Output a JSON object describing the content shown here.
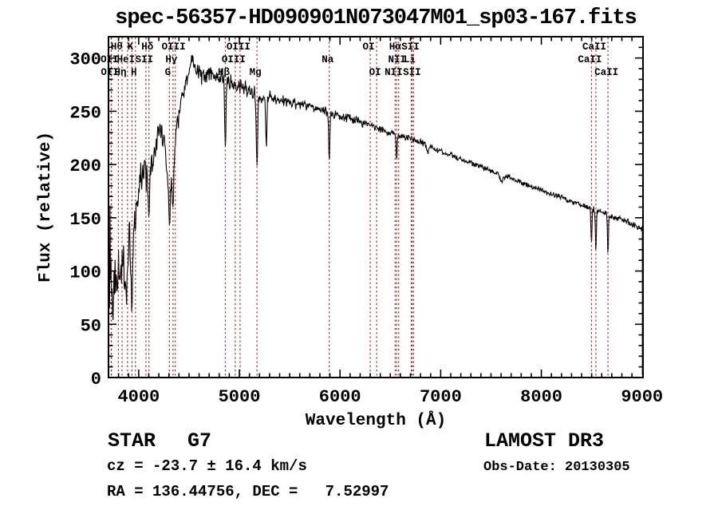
{
  "title": "spec-56357-HD090901N073047M01_sp03-167.fits",
  "footer": {
    "class_label": "STAR",
    "subclass_label": "G7",
    "release_label": "LAMOST DR3",
    "cz_line": "cz = -23.7 ± 16.4 km/s",
    "obsdate_line": "Obs-Date: 20130305",
    "radec_line": "RA = 136.44756, DEC =   7.52997"
  },
  "chart_data": {
    "type": "line",
    "title": "spec-56357-HD090901N073047M01_sp03-167.fits",
    "xlabel": "Wavelength (Å)",
    "ylabel": "Flux (relative)",
    "xlim": [
      3700,
      9010
    ],
    "ylim": [
      0,
      320
    ],
    "x_ticks": [
      4000,
      5000,
      6000,
      7000,
      8000,
      9000
    ],
    "x_minor_step": 100,
    "y_ticks": [
      0,
      50,
      100,
      150,
      200,
      250,
      300
    ],
    "y_minor_step": 10,
    "grid": false,
    "legend": "none",
    "series_name": "flux",
    "series_color": "#000000",
    "marker_color": "#992828",
    "noise_seed": 20130305,
    "sample_step": 5,
    "spectral_lines": [
      {
        "label": "OII",
        "wavelength": 3727,
        "row": 1
      },
      {
        "label": "OII",
        "wavelength": 3729,
        "row": 2
      },
      {
        "label": "Hθ",
        "wavelength": 3798,
        "row": 0
      },
      {
        "label": "Hη",
        "wavelength": 3835,
        "row": 2
      },
      {
        "label": "HeI",
        "wavelength": 3889,
        "row": 1
      },
      {
        "label": "K",
        "wavelength": 3933,
        "row": 0
      },
      {
        "label": "H",
        "wavelength": 3968,
        "row": 2
      },
      {
        "label": "SII",
        "wavelength": 4072,
        "row": 1
      },
      {
        "label": "Hδ",
        "wavelength": 4102,
        "row": 0
      },
      {
        "label": "G",
        "wavelength": 4305,
        "row": 2
      },
      {
        "label": "Hγ",
        "wavelength": 4341,
        "row": 1
      },
      {
        "label": "OIII",
        "wavelength": 4363,
        "row": 0
      },
      {
        "label": "Hβ",
        "wavelength": 4861,
        "row": 2
      },
      {
        "label": "OIII",
        "wavelength": 4959,
        "row": 1
      },
      {
        "label": "OIII",
        "wavelength": 5007,
        "row": 0
      },
      {
        "label": "Mg",
        "wavelength": 5175,
        "row": 2
      },
      {
        "label": "Na",
        "wavelength": 5893,
        "row": 1
      },
      {
        "label": "OI",
        "wavelength": 6300,
        "row": 0
      },
      {
        "label": "OI",
        "wavelength": 6364,
        "row": 2
      },
      {
        "label": "NII",
        "wavelength": 6548,
        "row": 2
      },
      {
        "label": "Hα",
        "wavelength": 6563,
        "row": 0
      },
      {
        "label": "NII",
        "wavelength": 6583,
        "row": 1
      },
      {
        "label": "Li",
        "wavelength": 6708,
        "row": 1
      },
      {
        "label": "SII",
        "wavelength": 6716,
        "row": 0
      },
      {
        "label": "SII",
        "wavelength": 6731,
        "row": 2
      },
      {
        "label": "CaII",
        "wavelength": 8498,
        "row": 1
      },
      {
        "label": "CaII",
        "wavelength": 8542,
        "row": 0
      },
      {
        "label": "CaII",
        "wavelength": 8662,
        "row": 2
      }
    ],
    "continuum_points": [
      [
        3700,
        165
      ],
      [
        3702,
        35
      ],
      [
        3706,
        120
      ],
      [
        3710,
        70
      ],
      [
        3714,
        150
      ],
      [
        3720,
        95
      ],
      [
        3728,
        105
      ],
      [
        3736,
        75
      ],
      [
        3745,
        68
      ],
      [
        3755,
        82
      ],
      [
        3765,
        95
      ],
      [
        3775,
        72
      ],
      [
        3788,
        88
      ],
      [
        3800,
        98
      ],
      [
        3812,
        86
      ],
      [
        3825,
        102
      ],
      [
        3838,
        98
      ],
      [
        3852,
        108
      ],
      [
        3863,
        85
      ],
      [
        3872,
        60
      ],
      [
        3882,
        95
      ],
      [
        3892,
        118
      ],
      [
        3905,
        130
      ],
      [
        3918,
        112
      ],
      [
        3928,
        100
      ],
      [
        3933,
        85
      ],
      [
        3940,
        110
      ],
      [
        3950,
        128
      ],
      [
        3962,
        142
      ],
      [
        3975,
        158
      ],
      [
        3990,
        168
      ],
      [
        4000,
        176
      ],
      [
        4020,
        184
      ],
      [
        4040,
        192
      ],
      [
        4060,
        196
      ],
      [
        4080,
        188
      ],
      [
        4100,
        185
      ],
      [
        4120,
        192
      ],
      [
        4140,
        205
      ],
      [
        4160,
        215
      ],
      [
        4180,
        226
      ],
      [
        4200,
        238
      ],
      [
        4220,
        232
      ],
      [
        4240,
        224
      ],
      [
        4260,
        218
      ],
      [
        4280,
        208
      ],
      [
        4300,
        198
      ],
      [
        4320,
        196
      ],
      [
        4340,
        205
      ],
      [
        4360,
        215
      ],
      [
        4380,
        235
      ],
      [
        4400,
        252
      ],
      [
        4420,
        258
      ],
      [
        4440,
        266
      ],
      [
        4460,
        274
      ],
      [
        4480,
        282
      ],
      [
        4500,
        289
      ],
      [
        4520,
        294
      ],
      [
        4540,
        292
      ],
      [
        4560,
        290
      ],
      [
        4580,
        288
      ],
      [
        4600,
        287
      ],
      [
        4630,
        284
      ],
      [
        4660,
        283
      ],
      [
        4700,
        286
      ],
      [
        4740,
        282
      ],
      [
        4780,
        281
      ],
      [
        4820,
        283
      ],
      [
        4861,
        281
      ],
      [
        4900,
        279
      ],
      [
        4930,
        276
      ],
      [
        4959,
        276
      ],
      [
        5007,
        272
      ],
      [
        5060,
        272
      ],
      [
        5120,
        268
      ],
      [
        5175,
        263
      ],
      [
        5240,
        261
      ],
      [
        5300,
        263
      ],
      [
        5350,
        262
      ],
      [
        5400,
        261
      ],
      [
        5450,
        260
      ],
      [
        5500,
        259
      ],
      [
        5550,
        258
      ],
      [
        5600,
        257
      ],
      [
        5650,
        256
      ],
      [
        5700,
        255
      ],
      [
        5750,
        253
      ],
      [
        5800,
        252
      ],
      [
        5850,
        250
      ],
      [
        5893,
        249
      ],
      [
        5950,
        247
      ],
      [
        6000,
        246
      ],
      [
        6100,
        243
      ],
      [
        6200,
        240
      ],
      [
        6300,
        237
      ],
      [
        6400,
        233
      ],
      [
        6500,
        230
      ],
      [
        6600,
        227
      ],
      [
        6700,
        225
      ],
      [
        6800,
        221
      ],
      [
        6900,
        217
      ],
      [
        7000,
        213
      ],
      [
        7100,
        209
      ],
      [
        7200,
        205
      ],
      [
        7300,
        201
      ],
      [
        7400,
        198
      ],
      [
        7500,
        194
      ],
      [
        7600,
        190
      ],
      [
        7700,
        187
      ],
      [
        7800,
        183
      ],
      [
        7900,
        179
      ],
      [
        8000,
        176
      ],
      [
        8100,
        172
      ],
      [
        8200,
        169
      ],
      [
        8300,
        165
      ],
      [
        8400,
        162
      ],
      [
        8500,
        158
      ],
      [
        8600,
        155
      ],
      [
        8700,
        151
      ],
      [
        8800,
        148
      ],
      [
        8900,
        144
      ],
      [
        9000,
        140
      ]
    ],
    "absorption_dips": [
      [
        3933,
        25,
        6
      ],
      [
        4101,
        28,
        7
      ],
      [
        4305,
        46,
        10
      ],
      [
        4341,
        48,
        7
      ],
      [
        4861,
        70,
        6
      ],
      [
        5175,
        64,
        7
      ],
      [
        5268,
        52,
        5
      ],
      [
        5893,
        50,
        5
      ],
      [
        6563,
        26,
        4.5
      ],
      [
        6870,
        7,
        12
      ],
      [
        7605,
        6,
        14
      ],
      [
        8498,
        35,
        4.5
      ],
      [
        8542,
        40,
        4.5
      ],
      [
        8662,
        38,
        4.5
      ]
    ],
    "noise_segments": [
      [
        3700,
        3960,
        26
      ],
      [
        3960,
        4150,
        20
      ],
      [
        4150,
        4400,
        17
      ],
      [
        4400,
        4700,
        11
      ],
      [
        4700,
        5200,
        9
      ],
      [
        5200,
        5600,
        6.5
      ],
      [
        5600,
        6300,
        5
      ],
      [
        6300,
        7000,
        4
      ],
      [
        7000,
        8200,
        3
      ],
      [
        8200,
        9010,
        3.5
      ]
    ],
    "edge_drop_wavelength": 9004
  }
}
